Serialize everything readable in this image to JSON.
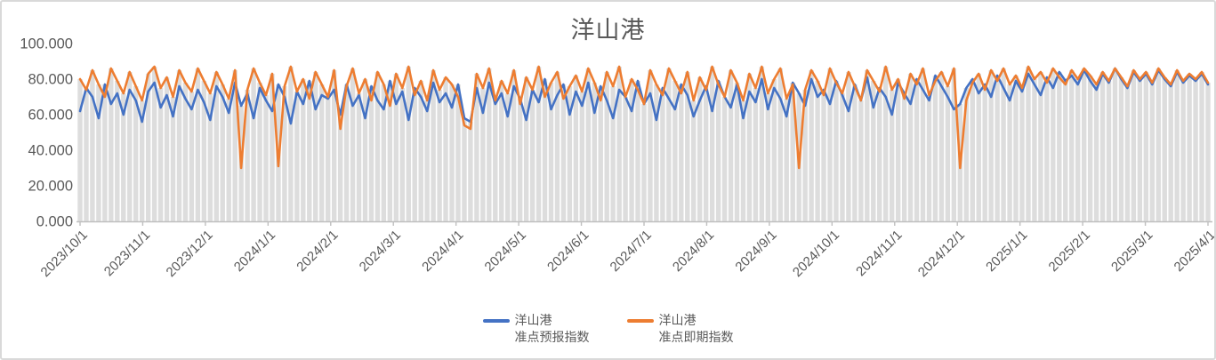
{
  "title": "洋山港",
  "colors": {
    "forecast_line": "#4472C4",
    "spot_line": "#ED7D31",
    "background_bar": "#DDDDDD",
    "axis": "#BFBFBF",
    "label_text": "#595959",
    "card_border": "#D9D9D9"
  },
  "legend": [
    {
      "label_line1": "洋山港",
      "label_line2": "准点预报指数",
      "color": "#4472C4"
    },
    {
      "label_line1": "洋山港",
      "label_line2": "准点即期指数",
      "color": "#ED7D31"
    }
  ],
  "chart_data": {
    "type": "line",
    "title": "洋山港",
    "xlabel": "",
    "ylabel": "",
    "ylim": [
      0,
      100
    ],
    "grid": false,
    "legend_position": "bottom",
    "x_range": [
      "2023/10/1",
      "2025/4/1"
    ],
    "x_tick_labels": [
      "2023/10/1",
      "2023/11/1",
      "2023/12/1",
      "2024/1/1",
      "2024/2/1",
      "2024/3/1",
      "2024/4/1",
      "2024/5/1",
      "2024/6/1",
      "2024/7/1",
      "2024/8/1",
      "2024/9/1",
      "2024/10/1",
      "2024/11/1",
      "2024/12/1",
      "2025/1/1",
      "2025/2/1",
      "2025/3/1",
      "2025/4/1"
    ],
    "y_tick_labels": [
      "0.000",
      "20.000",
      "40.000",
      "60.000",
      "80.000",
      "100.000"
    ],
    "y_tick_values": [
      0,
      20,
      40,
      60,
      80,
      100
    ],
    "background_bars": {
      "color": "#DDDDDD",
      "rule": "max_of_series"
    },
    "series": [
      {
        "name": "洋山港 准点预报指数",
        "color": "#4472C4",
        "values": [
          62,
          75,
          70,
          58,
          77,
          66,
          72,
          60,
          74,
          68,
          56,
          73,
          78,
          64,
          71,
          59,
          76,
          69,
          63,
          74,
          67,
          57,
          76,
          70,
          61,
          78,
          65,
          72,
          58,
          75,
          68,
          62,
          77,
          70,
          55,
          73,
          66,
          79,
          63,
          71,
          69,
          74,
          60,
          77,
          65,
          71,
          58,
          76,
          68,
          63,
          79,
          66,
          73,
          57,
          75,
          70,
          62,
          78,
          67,
          72,
          64,
          77,
          58,
          56,
          75,
          61,
          78,
          66,
          72,
          59,
          76,
          69,
          57,
          74,
          67,
          80,
          63,
          71,
          77,
          60,
          73,
          65,
          78,
          61,
          76,
          68,
          58,
          74,
          70,
          62,
          79,
          66,
          72,
          57,
          75,
          69,
          63,
          77,
          71,
          59,
          68,
          76,
          62,
          79,
          70,
          64,
          77,
          58,
          73,
          67,
          80,
          63,
          75,
          69,
          59,
          78,
          72,
          65,
          80,
          70,
          74,
          66,
          79,
          71,
          62,
          77,
          68,
          81,
          64,
          75,
          70,
          60,
          78,
          72,
          66,
          80,
          74,
          68,
          82,
          76,
          70,
          63,
          66,
          75,
          80,
          72,
          77,
          70,
          82,
          75,
          68,
          79,
          73,
          83,
          77,
          71,
          81,
          75,
          84,
          79,
          82,
          77,
          85,
          79,
          74,
          83,
          78,
          86,
          80,
          75,
          84,
          79,
          83,
          77,
          85,
          80,
          76,
          84,
          78,
          82,
          79,
          83,
          77
        ]
      },
      {
        "name": "洋山港 准点即期指数",
        "color": "#ED7D31",
        "values": [
          80,
          74,
          85,
          77,
          70,
          86,
          79,
          72,
          84,
          76,
          68,
          83,
          87,
          75,
          81,
          70,
          85,
          78,
          73,
          86,
          79,
          72,
          84,
          77,
          69,
          85,
          30,
          74,
          86,
          78,
          71,
          83,
          31,
          76,
          87,
          73,
          80,
          69,
          84,
          77,
          70,
          85,
          52,
          76,
          86,
          72,
          80,
          68,
          84,
          77,
          65,
          83,
          75,
          87,
          71,
          79,
          68,
          85,
          74,
          81,
          77,
          70,
          54,
          52,
          83,
          75,
          86,
          68,
          79,
          72,
          85,
          66,
          81,
          74,
          87,
          70,
          78,
          84,
          69,
          76,
          82,
          73,
          86,
          78,
          68,
          84,
          76,
          87,
          70,
          80,
          74,
          66,
          85,
          77,
          71,
          86,
          79,
          72,
          84,
          68,
          81,
          74,
          87,
          77,
          70,
          85,
          78,
          68,
          83,
          75,
          87,
          72,
          80,
          86,
          69,
          77,
          30,
          74,
          85,
          79,
          71,
          86,
          78,
          72,
          84,
          76,
          68,
          85,
          79,
          73,
          87,
          74,
          80,
          69,
          83,
          77,
          86,
          71,
          79,
          84,
          76,
          86,
          30,
          68,
          78,
          83,
          74,
          85,
          79,
          86,
          77,
          82,
          75,
          87,
          80,
          84,
          78,
          86,
          81,
          77,
          85,
          80,
          86,
          82,
          77,
          84,
          79,
          86,
          81,
          76,
          85,
          80,
          84,
          78,
          86,
          81,
          77,
          85,
          79,
          83,
          80,
          84,
          78
        ]
      }
    ]
  }
}
